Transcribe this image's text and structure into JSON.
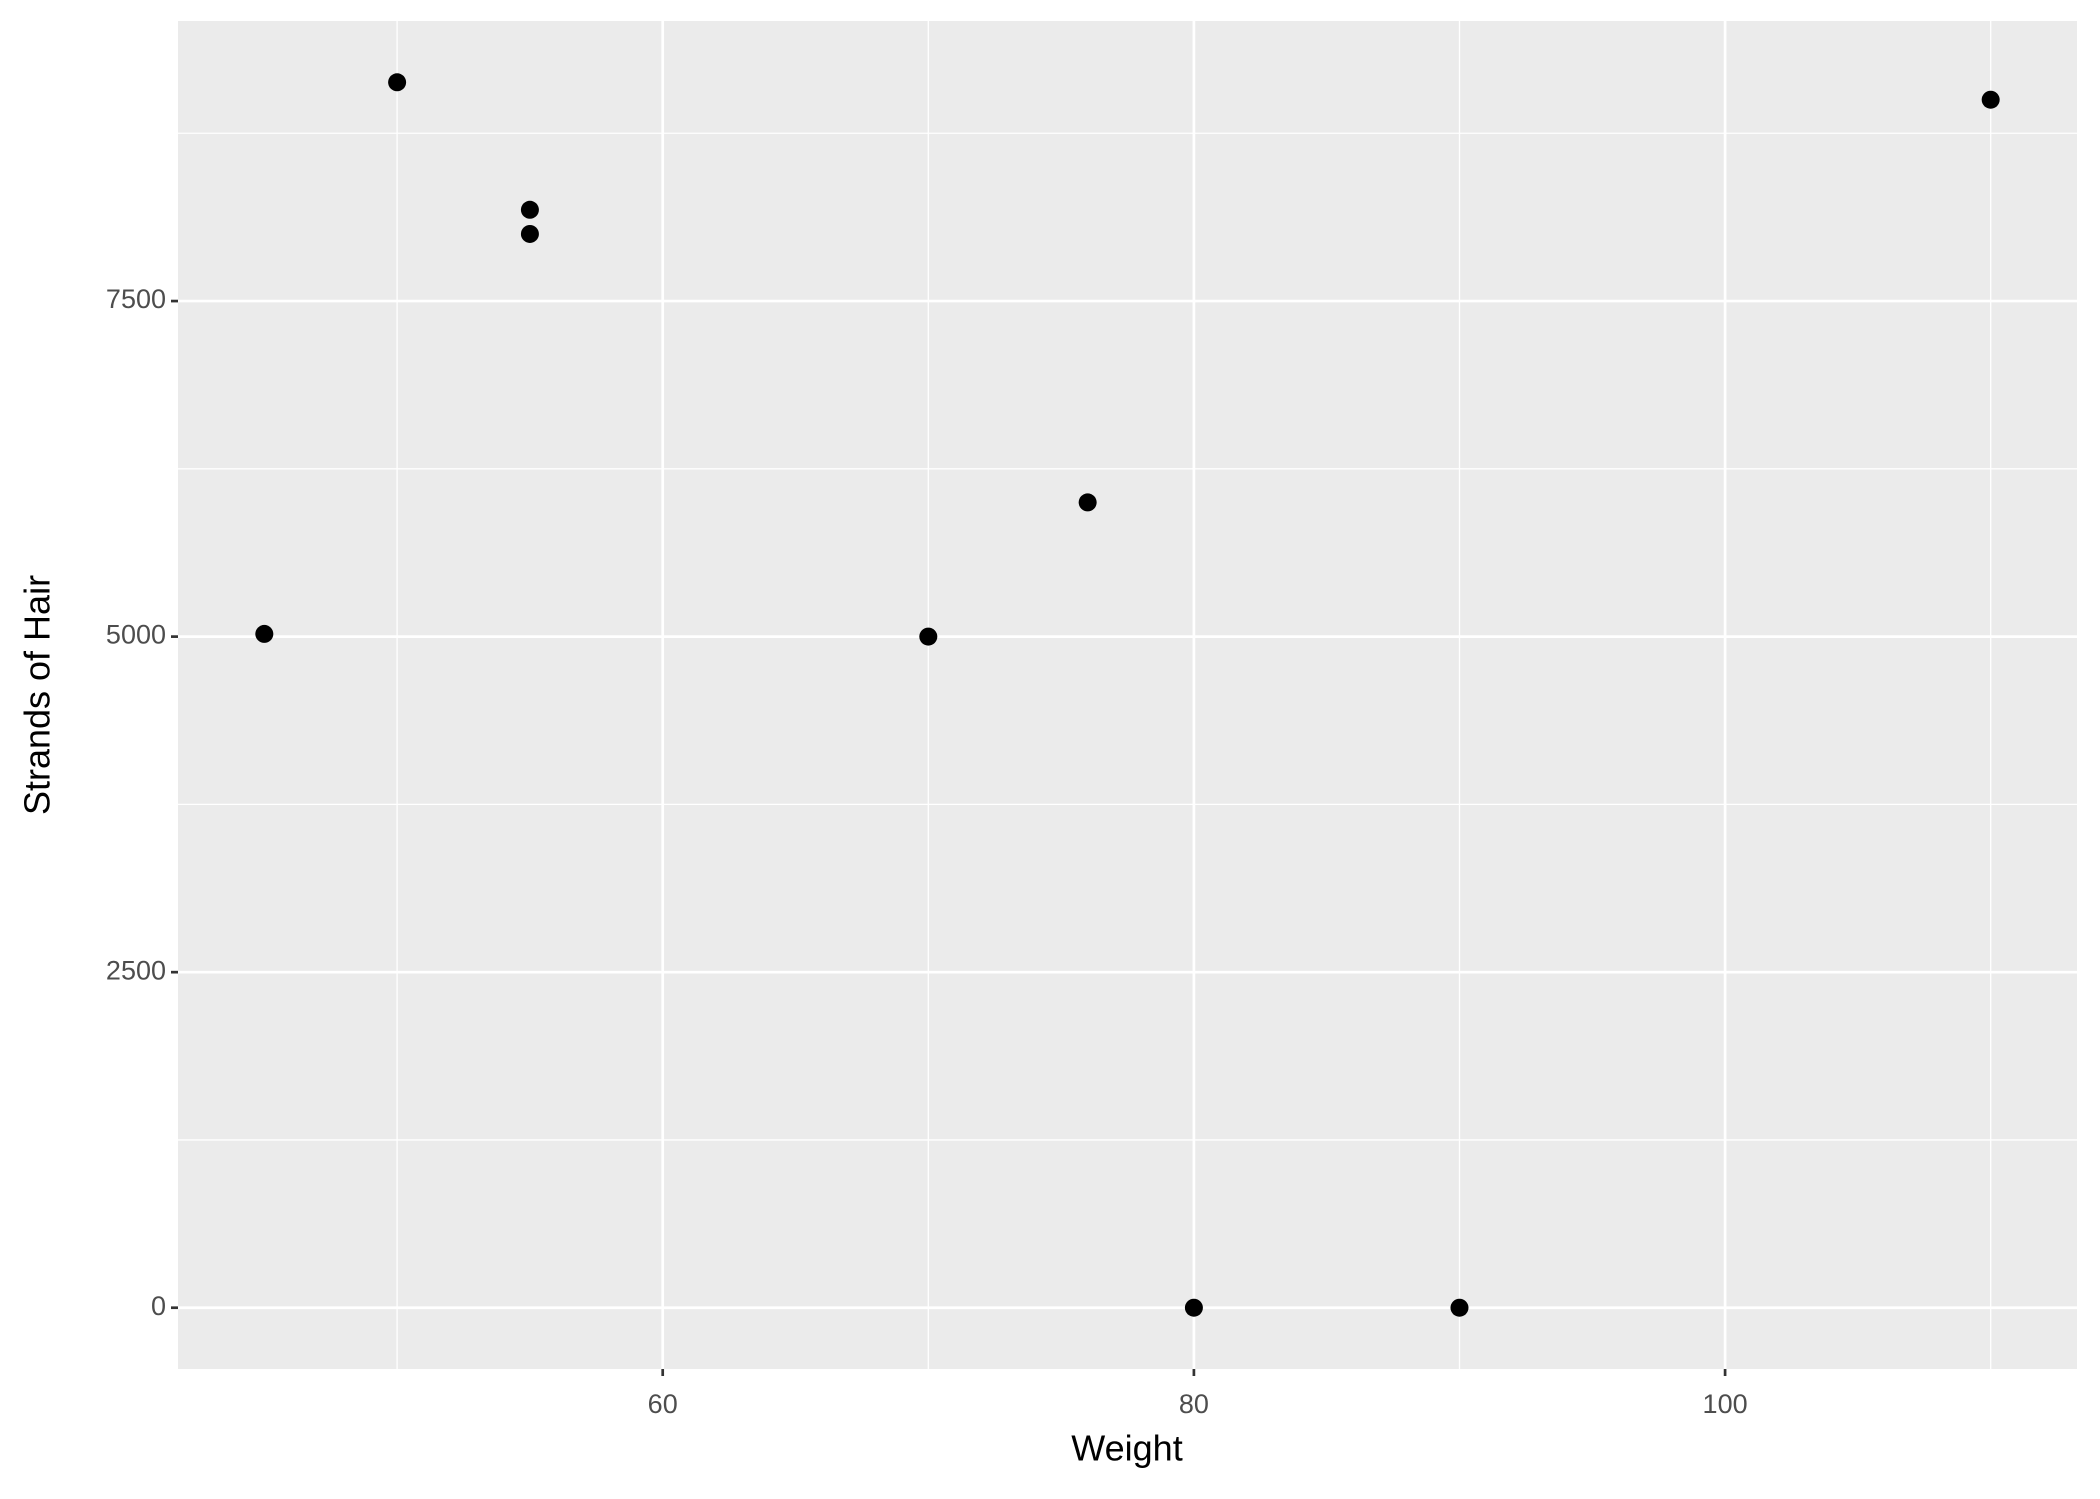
{
  "chart_data": {
    "type": "scatter",
    "x_label": "Weight",
    "y_label": "Strands of Hair",
    "x": [
      45,
      50,
      55,
      55,
      70,
      76,
      80,
      90,
      110
    ],
    "y": [
      5020,
      9130,
      8180,
      8000,
      5000,
      6000,
      0,
      0,
      9000
    ],
    "color": "#000000",
    "xlim": [
      41.75,
      113.25
    ],
    "xticks": [
      60,
      80,
      100
    ],
    "minor_xticks": [
      50,
      70,
      90,
      110
    ],
    "ylim": [
      -456.5,
      9586.5
    ],
    "yticks": [
      0,
      2500,
      5000,
      7500
    ],
    "minor_yticks": [
      1250,
      3750,
      6250,
      8750
    ],
    "grid": true,
    "panel_color": "#ebebeb"
  }
}
